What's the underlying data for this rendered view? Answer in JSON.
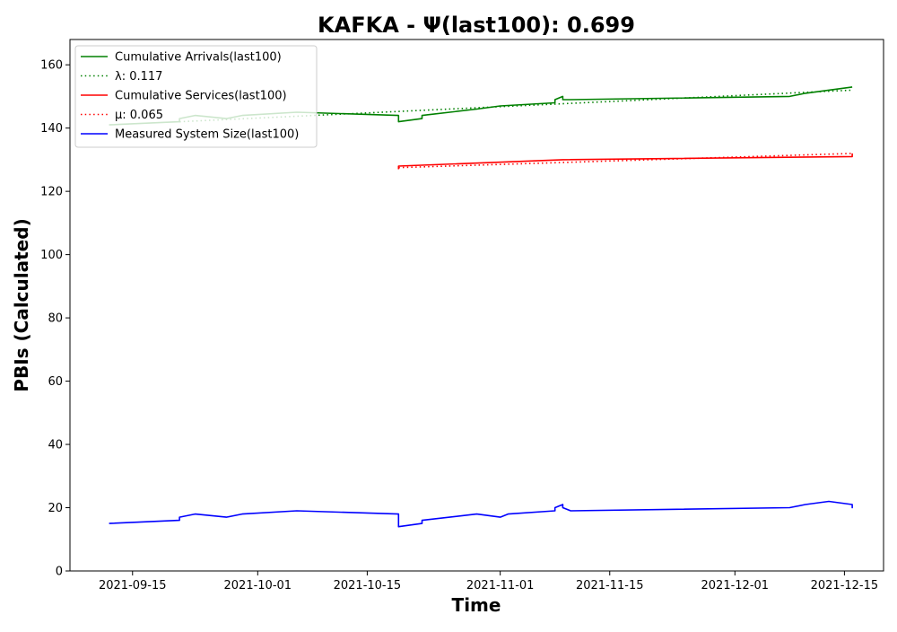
{
  "chart_data": {
    "type": "line",
    "title": "KAFKA -  Ψ(last100): 0.699",
    "xlabel": "Time",
    "ylabel": "PBIs (Calculated)",
    "xlim": [
      "2021-09-07",
      "2021-12-20"
    ],
    "ylim": [
      0,
      168
    ],
    "x_ticks": [
      "2021-09-15",
      "2021-10-01",
      "2021-10-15",
      "2021-11-01",
      "2021-11-15",
      "2021-12-01",
      "2021-12-15"
    ],
    "y_ticks": [
      0,
      20,
      40,
      60,
      80,
      100,
      120,
      140,
      160
    ],
    "grid": false,
    "legend": {
      "placement": "upper-left",
      "entries": [
        {
          "label": "Cumulative Arrivals(last100)",
          "color": "#008000",
          "style": "solid"
        },
        {
          "label": "λ: 0.117",
          "color": "#008000",
          "style": "dotted"
        },
        {
          "label": "Cumulative Services(last100)",
          "color": "#ff0000",
          "style": "solid"
        },
        {
          "label": "μ: 0.065",
          "color": "#ff0000",
          "style": "dotted"
        },
        {
          "label": "Measured System Size(last100)",
          "color": "#0000ff",
          "style": "solid"
        }
      ]
    },
    "series": [
      {
        "name": "Cumulative Arrivals(last100)",
        "color": "#008000",
        "style": "solid",
        "points": [
          [
            "2021-09-12",
            141
          ],
          [
            "2021-09-21",
            142
          ],
          [
            "2021-09-21",
            143
          ],
          [
            "2021-09-23",
            144
          ],
          [
            "2021-09-27",
            143
          ],
          [
            "2021-09-29",
            144
          ],
          [
            "2021-10-06",
            145
          ],
          [
            "2021-10-19",
            144
          ],
          [
            "2021-10-19",
            142
          ],
          [
            "2021-10-22",
            143
          ],
          [
            "2021-10-22",
            144
          ],
          [
            "2021-10-29",
            146
          ],
          [
            "2021-11-01",
            147
          ],
          [
            "2021-11-08",
            148
          ],
          [
            "2021-11-08",
            149
          ],
          [
            "2021-11-09",
            150
          ],
          [
            "2021-11-09",
            149
          ],
          [
            "2021-11-10",
            149
          ],
          [
            "2021-12-08",
            150
          ],
          [
            "2021-12-10",
            151
          ],
          [
            "2021-12-16",
            153
          ]
        ]
      },
      {
        "name": "λ: 0.117",
        "color": "#008000",
        "style": "dotted",
        "points": [
          [
            "2021-09-21",
            142
          ],
          [
            "2021-12-16",
            152
          ]
        ]
      },
      {
        "name": "Cumulative Services(last100)",
        "color": "#ff0000",
        "style": "solid",
        "points": [
          [
            "2021-10-19",
            127
          ],
          [
            "2021-10-19",
            128
          ],
          [
            "2021-11-09",
            130
          ],
          [
            "2021-12-16",
            131
          ],
          [
            "2021-12-16",
            132
          ]
        ]
      },
      {
        "name": "μ: 0.065",
        "color": "#ff0000",
        "style": "dotted",
        "points": [
          [
            "2021-10-19",
            127.5
          ],
          [
            "2021-12-16",
            132
          ]
        ]
      },
      {
        "name": "Measured System Size(last100)",
        "color": "#0000ff",
        "style": "solid",
        "points": [
          [
            "2021-09-12",
            15
          ],
          [
            "2021-09-21",
            16
          ],
          [
            "2021-09-21",
            17
          ],
          [
            "2021-09-23",
            18
          ],
          [
            "2021-09-27",
            17
          ],
          [
            "2021-09-29",
            18
          ],
          [
            "2021-10-06",
            19
          ],
          [
            "2021-10-19",
            18
          ],
          [
            "2021-10-19",
            14
          ],
          [
            "2021-10-22",
            15
          ],
          [
            "2021-10-22",
            16
          ],
          [
            "2021-10-29",
            18
          ],
          [
            "2021-11-01",
            17
          ],
          [
            "2021-11-02",
            18
          ],
          [
            "2021-11-08",
            19
          ],
          [
            "2021-11-08",
            20
          ],
          [
            "2021-11-09",
            21
          ],
          [
            "2021-11-09",
            20
          ],
          [
            "2021-11-10",
            19
          ],
          [
            "2021-12-08",
            20
          ],
          [
            "2021-12-10",
            21
          ],
          [
            "2021-12-13",
            22
          ],
          [
            "2021-12-16",
            21
          ],
          [
            "2021-12-16",
            20
          ],
          [
            "2021-12-16",
            21
          ]
        ]
      }
    ]
  }
}
